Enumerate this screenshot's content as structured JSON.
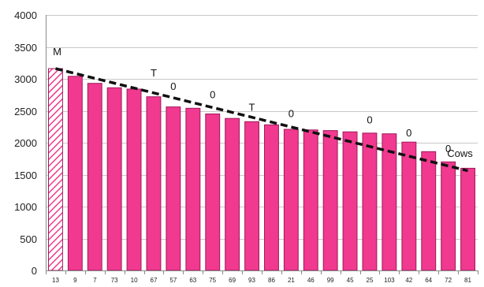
{
  "chart_data": {
    "type": "bar",
    "categories": [
      "13",
      "9",
      "7",
      "73",
      "10",
      "67",
      "57",
      "63",
      "75",
      "69",
      "93",
      "86",
      "21",
      "46",
      "99",
      "45",
      "25",
      "103",
      "42",
      "64",
      "72",
      "81"
    ],
    "values": [
      3160,
      3040,
      2930,
      2860,
      2840,
      2720,
      2560,
      2540,
      2450,
      2380,
      2330,
      2280,
      2210,
      2200,
      2190,
      2170,
      2150,
      2140,
      2010,
      1860,
      1700,
      1600
    ],
    "ylim": [
      0,
      4000
    ],
    "yticks": [
      0,
      500,
      1000,
      1500,
      2000,
      2500,
      3000,
      3500,
      4000
    ],
    "grid": true,
    "bar_color": "#f0398f",
    "highlight": {
      "index": 0,
      "pattern": "diagonal-hatch"
    },
    "trendline": {
      "style": "dashed",
      "color": "#111111",
      "from": {
        "category": "13",
        "y": 3160
      },
      "to": {
        "category": "81",
        "y": 1560
      }
    },
    "annotations": [
      {
        "text": "M",
        "category": "13",
        "y": 3370
      },
      {
        "text": "T",
        "category": "67",
        "y": 3040
      },
      {
        "text": "0",
        "category": "57",
        "y": 2830
      },
      {
        "text": "0",
        "category": "75",
        "y": 2700
      },
      {
        "text": "T",
        "category": "93",
        "y": 2500
      },
      {
        "text": "0",
        "category": "21",
        "y": 2400
      },
      {
        "text": "0",
        "category": "25",
        "y": 2300
      },
      {
        "text": "0",
        "category": "42",
        "y": 2100
      },
      {
        "text": "0",
        "category": "72",
        "y": 1850
      },
      {
        "text": "Cows",
        "category": "81",
        "y": 1780
      }
    ]
  }
}
